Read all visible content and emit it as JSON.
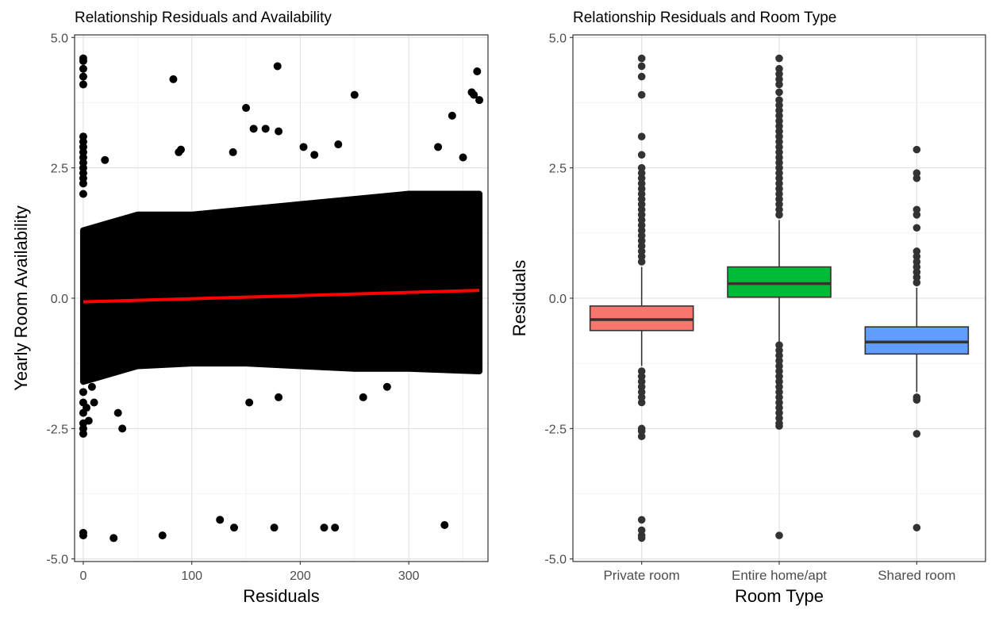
{
  "chart_data": [
    {
      "type": "scatter",
      "title": "Relationship Residuals and Availability",
      "xlabel": "Residuals",
      "ylabel": "Yearly Room Availability",
      "xlim": [
        -8,
        373
      ],
      "ylim": [
        -5.05,
        5.05
      ],
      "x_ticks": [
        0,
        100,
        200,
        300
      ],
      "x_tick_labels": [
        "0",
        "100",
        "200",
        "300"
      ],
      "y_ticks": [
        -5,
        -2.5,
        0,
        2.5,
        5
      ],
      "y_tick_labels": [
        "-5.0",
        "-2.5",
        "0.0",
        "2.5",
        "5.0"
      ],
      "grid": true,
      "dense_band": {
        "x_range": [
          0,
          365
        ],
        "upper_edge": [
          [
            0,
            1.3
          ],
          [
            50,
            1.6
          ],
          [
            100,
            1.6
          ],
          [
            150,
            1.7
          ],
          [
            200,
            1.8
          ],
          [
            250,
            1.9
          ],
          [
            300,
            2.0
          ],
          [
            365,
            2.0
          ]
        ],
        "lower_edge": [
          [
            0,
            -1.6
          ],
          [
            50,
            -1.3
          ],
          [
            100,
            -1.25
          ],
          [
            150,
            -1.25
          ],
          [
            200,
            -1.3
          ],
          [
            250,
            -1.35
          ],
          [
            300,
            -1.35
          ],
          [
            365,
            -1.4
          ]
        ]
      },
      "points": [
        [
          0,
          4.6
        ],
        [
          0,
          4.55
        ],
        [
          0,
          4.4
        ],
        [
          0,
          4.25
        ],
        [
          0,
          4.1
        ],
        [
          0,
          3.1
        ],
        [
          0,
          3.0
        ],
        [
          0,
          2.9
        ],
        [
          0,
          2.8
        ],
        [
          0,
          2.7
        ],
        [
          0,
          2.6
        ],
        [
          0,
          2.5
        ],
        [
          0,
          2.4
        ],
        [
          0,
          2.3
        ],
        [
          0,
          2.2
        ],
        [
          0,
          2.0
        ],
        [
          0,
          -1.8
        ],
        [
          0,
          -2.0
        ],
        [
          0,
          -2.2
        ],
        [
          0,
          -2.4
        ],
        [
          0,
          -2.5
        ],
        [
          0,
          -2.6
        ],
        [
          0,
          -4.5
        ],
        [
          0,
          -4.55
        ],
        [
          3,
          -2.1
        ],
        [
          5,
          -2.35
        ],
        [
          8,
          -1.7
        ],
        [
          10,
          -2.0
        ],
        [
          20,
          2.65
        ],
        [
          28,
          -4.6
        ],
        [
          32,
          -2.2
        ],
        [
          36,
          -2.5
        ],
        [
          73,
          -4.55
        ],
        [
          83,
          4.2
        ],
        [
          88,
          2.8
        ],
        [
          90,
          2.85
        ],
        [
          126,
          -4.25
        ],
        [
          138,
          2.8
        ],
        [
          139,
          -4.4
        ],
        [
          150,
          3.65
        ],
        [
          153,
          -2.0
        ],
        [
          157,
          3.25
        ],
        [
          168,
          3.25
        ],
        [
          176,
          -4.4
        ],
        [
          179,
          4.45
        ],
        [
          180,
          3.2
        ],
        [
          180,
          -1.9
        ],
        [
          203,
          2.9
        ],
        [
          213,
          2.75
        ],
        [
          222,
          -4.4
        ],
        [
          232,
          -4.4
        ],
        [
          235,
          2.95
        ],
        [
          250,
          3.9
        ],
        [
          258,
          -1.9
        ],
        [
          280,
          -1.7
        ],
        [
          327,
          2.9
        ],
        [
          333,
          -4.35
        ],
        [
          340,
          3.5
        ],
        [
          350,
          2.7
        ],
        [
          358,
          3.95
        ],
        [
          360,
          3.9
        ],
        [
          363,
          4.35
        ],
        [
          365,
          3.8
        ]
      ],
      "regression_line": {
        "x": [
          0,
          365
        ],
        "y": [
          -0.07,
          0.15
        ],
        "color": "#ff0000"
      }
    },
    {
      "type": "box",
      "title": "Relationship Residuals and Room Type",
      "xlabel": "Room Type",
      "ylabel": "Residuals",
      "ylim": [
        -5.05,
        5.05
      ],
      "y_ticks": [
        -5,
        -2.5,
        0,
        2.5,
        5
      ],
      "y_tick_labels": [
        "-5.0",
        "-2.5",
        "0.0",
        "2.5",
        "5.0"
      ],
      "grid": true,
      "categories": [
        "Private room",
        "Entire home/apt",
        "Shared room"
      ],
      "boxes": [
        {
          "category": "Private room",
          "color": "#f8766d",
          "q1": -0.62,
          "median": -0.41,
          "q3": -0.15,
          "whisker_low": -1.3,
          "whisker_high": 0.6,
          "outliers": [
            4.6,
            4.45,
            4.25,
            3.9,
            3.1,
            2.75,
            2.5,
            2.4,
            2.3,
            2.2,
            2.1,
            2.0,
            1.9,
            1.8,
            1.7,
            1.6,
            1.5,
            1.4,
            1.3,
            1.2,
            1.1,
            1.0,
            0.9,
            0.8,
            0.7,
            -1.4,
            -1.5,
            -1.6,
            -1.7,
            -1.8,
            -1.9,
            -2.0,
            -2.5,
            -2.55,
            -2.65,
            -4.25,
            -4.45,
            -4.55,
            -4.6
          ]
        },
        {
          "category": "Entire home/apt",
          "color": "#00ba38",
          "q1": 0.02,
          "median": 0.28,
          "q3": 0.6,
          "whisker_low": -0.85,
          "whisker_high": 1.5,
          "outliers": [
            4.6,
            4.4,
            4.3,
            4.2,
            4.1,
            3.95,
            3.8,
            3.7,
            3.6,
            3.5,
            3.4,
            3.3,
            3.2,
            3.1,
            3.0,
            2.9,
            2.8,
            2.7,
            2.6,
            2.5,
            2.4,
            2.3,
            2.2,
            2.1,
            2.0,
            1.9,
            1.8,
            1.7,
            1.6,
            -0.9,
            -1.0,
            -1.1,
            -1.2,
            -1.3,
            -1.4,
            -1.5,
            -1.6,
            -1.7,
            -1.8,
            -1.9,
            -2.0,
            -2.1,
            -2.2,
            -2.3,
            -2.4,
            -2.45,
            -4.55
          ]
        },
        {
          "category": "Shared room",
          "color": "#619cff",
          "q1": -1.07,
          "median": -0.84,
          "q3": -0.55,
          "whisker_low": -1.8,
          "whisker_high": 0.2,
          "outliers": [
            2.85,
            2.4,
            2.3,
            1.7,
            1.6,
            1.35,
            0.9,
            0.8,
            0.7,
            0.6,
            0.5,
            0.4,
            0.3,
            -1.9,
            -1.95,
            -2.6,
            -4.4
          ]
        }
      ]
    }
  ]
}
